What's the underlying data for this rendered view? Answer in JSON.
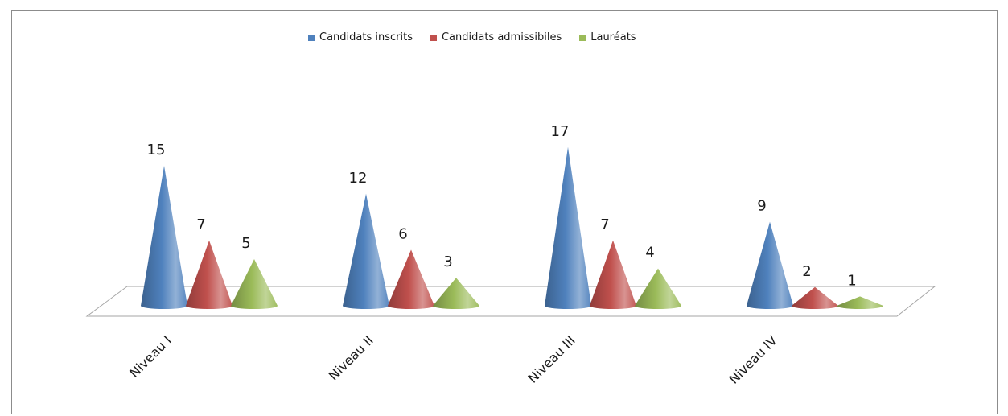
{
  "chart_data": {
    "type": "bar",
    "style": "3d-cone",
    "categories": [
      "Niveau I",
      "Niveau II",
      "Niveau III",
      "Niveau IV"
    ],
    "series": [
      {
        "name": "Candidats inscrits",
        "color": "#4f81bd",
        "values": [
          15,
          12,
          17,
          9
        ]
      },
      {
        "name": "Candidats admissibiles",
        "color": "#c0504d",
        "values": [
          7,
          6,
          7,
          2
        ]
      },
      {
        "name": "Lauréats",
        "color": "#9bbb59",
        "values": [
          5,
          3,
          4,
          1
        ]
      }
    ],
    "title": "",
    "xlabel": "",
    "ylabel": "",
    "ylim": [
      0,
      18
    ],
    "grid": false,
    "legend_position": "top"
  }
}
